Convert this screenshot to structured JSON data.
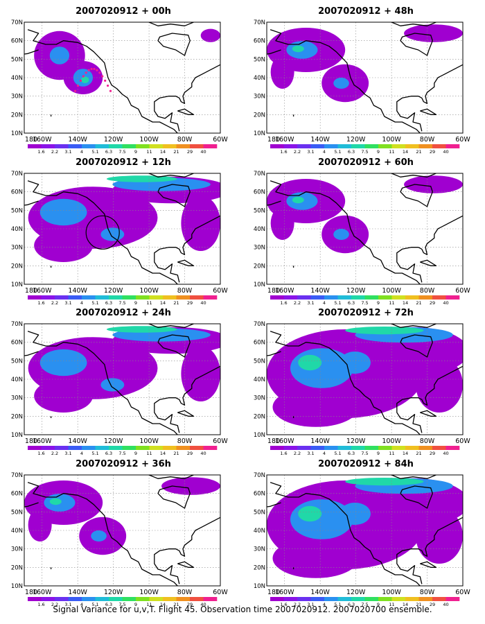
{
  "panels": [
    {
      "title": "2007020912 + 00h"
    },
    {
      "title": "2007020912 + 48h"
    },
    {
      "title": "2007020912 + 12h"
    },
    {
      "title": "2007020912 + 60h"
    },
    {
      "title": "2007020912 + 24h"
    },
    {
      "title": "2007020912 + 72h"
    },
    {
      "title": "2007020912 + 36h"
    },
    {
      "title": "2007020912 + 84h"
    }
  ],
  "axes": {
    "lat_labels": [
      "70N",
      "60N",
      "50N",
      "40N",
      "30N",
      "20N",
      "10N"
    ],
    "lon_labels": [
      "180",
      "160W",
      "140W",
      "120W",
      "100W",
      "80W",
      "60W"
    ]
  },
  "colorbar": {
    "labels": [
      "1.6",
      "2.2",
      "3.1",
      "4",
      "5.1",
      "6.3",
      "7.5",
      "9",
      "11",
      "14",
      "21",
      "29",
      "40"
    ],
    "colors": [
      "#a000d0",
      "#8a14e8",
      "#6a30f0",
      "#3a5cf5",
      "#2a90f0",
      "#20bcd8",
      "#20d8a8",
      "#30e060",
      "#80e020",
      "#d0e020",
      "#f0c020",
      "#f09020",
      "#f05040",
      "#f02090"
    ]
  },
  "caption": "Signal Variance for u,v,T. Flight 45. Observation time 2007020912. 2007020700 ensemble."
}
